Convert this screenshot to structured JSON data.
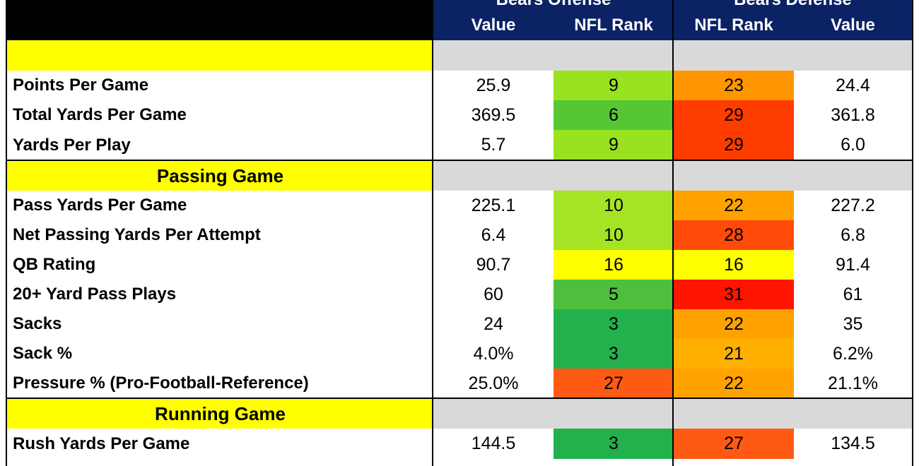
{
  "header": {
    "group_offense": "Bears Offense",
    "group_defense": "Bears Defense",
    "columns": [
      "Value",
      "NFL Rank",
      "NFL Rank",
      "Value"
    ]
  },
  "sections": {
    "passing": "Passing Game",
    "running": "Running Game"
  },
  "rows": [
    {
      "label": "Points Per Game",
      "off_value": "25.9",
      "off_rank": "9",
      "def_rank": "23",
      "def_value": "24.4",
      "off_color": "#99e21f",
      "def_color": "#ff9600"
    },
    {
      "label": "Total Yards Per Game",
      "off_value": "369.5",
      "off_rank": "6",
      "def_rank": "29",
      "def_value": "361.8",
      "off_color": "#55c733",
      "def_color": "#ff3c00"
    },
    {
      "label": "Yards Per Play",
      "off_value": "5.7",
      "off_rank": "9",
      "def_rank": "29",
      "def_value": "6.0",
      "off_color": "#99e21f",
      "def_color": "#ff3c00"
    },
    {
      "label": "Pass Yards Per Game",
      "off_value": "225.1",
      "off_rank": "10",
      "def_rank": "22",
      "def_value": "227.2",
      "off_color": "#a5e424",
      "def_color": "#ffa200"
    },
    {
      "label": "Net Passing Yards Per Attempt",
      "off_value": "6.4",
      "off_rank": "10",
      "def_rank": "28",
      "def_value": "6.8",
      "off_color": "#a5e424",
      "def_color": "#ff4a0a"
    },
    {
      "label": "QB Rating",
      "off_value": "90.7",
      "off_rank": "16",
      "def_rank": "16",
      "def_value": "91.4",
      "off_color": "#ffff00",
      "def_color": "#ffff00"
    },
    {
      "label": "20+ Yard Pass Plays",
      "off_value": "60",
      "off_rank": "5",
      "def_rank": "31",
      "def_value": "61",
      "off_color": "#4ebf3c",
      "def_color": "#ff1400"
    },
    {
      "label": "Sacks",
      "off_value": "24",
      "off_rank": "3",
      "def_rank": "22",
      "def_value": "35",
      "off_color": "#22b14c",
      "def_color": "#ffa200"
    },
    {
      "label": "Sack %",
      "off_value": "4.0%",
      "off_rank": "3",
      "def_rank": "21",
      "def_value": "6.2%",
      "off_color": "#22b14c",
      "def_color": "#ffb000"
    },
    {
      "label": "Pressure % (Pro-Football-Reference)",
      "off_value": "25.0%",
      "off_rank": "27",
      "def_rank": "22",
      "def_value": "21.1%",
      "off_color": "#ff5a14",
      "def_color": "#ffa200"
    },
    {
      "label": "Rush Yards Per Game",
      "off_value": "144.5",
      "off_rank": "3",
      "def_rank": "27",
      "def_value": "134.5",
      "off_color": "#22b14c",
      "def_color": "#ff5a14"
    }
  ],
  "colors": {
    "header_navy": "#0b2365",
    "section_yellow": "#ffff00",
    "section_gray": "#d9d9d9"
  }
}
